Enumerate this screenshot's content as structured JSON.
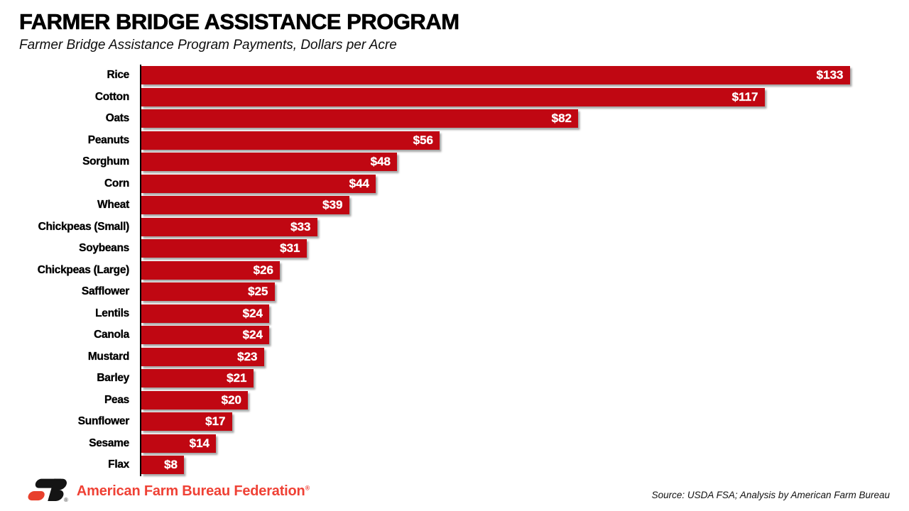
{
  "header": {
    "title": "FARMER BRIDGE ASSISTANCE PROGRAM",
    "subtitle": "Farmer Bridge Assistance Program Payments, Dollars per Acre"
  },
  "chart_data": {
    "type": "bar",
    "orientation": "horizontal",
    "title": "FARMER BRIDGE ASSISTANCE PROGRAM",
    "subtitle": "Farmer Bridge Assistance Program Payments, Dollars per Acre",
    "categories": [
      "Rice",
      "Cotton",
      "Oats",
      "Peanuts",
      "Sorghum",
      "Corn",
      "Wheat",
      "Chickpeas (Small)",
      "Soybeans",
      "Chickpeas (Large)",
      "Safflower",
      "Lentils",
      "Canola",
      "Mustard",
      "Barley",
      "Peas",
      "Sunflower",
      "Sesame",
      "Flax"
    ],
    "values": [
      133,
      117,
      82,
      56,
      48,
      44,
      39,
      33,
      31,
      26,
      25,
      24,
      24,
      23,
      21,
      20,
      17,
      14,
      8
    ],
    "value_labels": [
      "$133",
      "$117",
      "$82",
      "$56",
      "$48",
      "$44",
      "$39",
      "$33",
      "$31",
      "$26",
      "$25",
      "$24",
      "$24",
      "$23",
      "$21",
      "$20",
      "$17",
      "$14",
      "$8"
    ],
    "unit": "Dollars per Acre",
    "xlim": [
      0,
      140
    ],
    "grid": false,
    "legend": false,
    "bar_color": "#C00712",
    "value_label_color": "#FFFFFF",
    "axis_line_color": "#000000"
  },
  "footer": {
    "logo_name": "american-farm-bureau-fb-logo",
    "org_name": "American Farm Bureau Federation",
    "registered_mark": "®",
    "source": "Source: USDA FSA; Analysis by American Farm Bureau",
    "brand_red": "#EF4135"
  }
}
